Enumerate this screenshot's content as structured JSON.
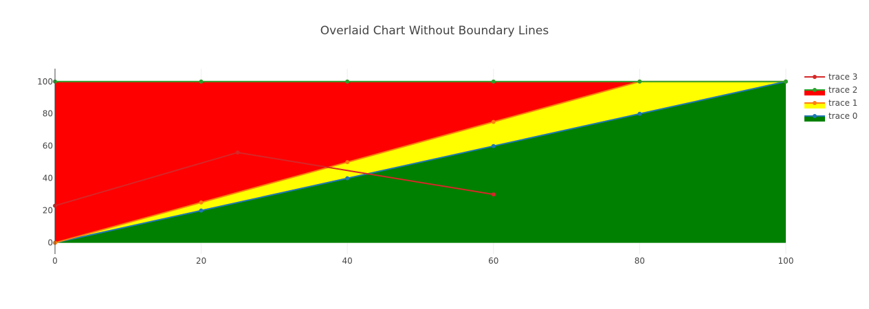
{
  "chart_data": {
    "type": "area",
    "title": "Overlaid Chart Without Boundary Lines",
    "xlabel": "",
    "ylabel": "",
    "xlim": [
      0,
      100
    ],
    "ylim": [
      -7,
      108
    ],
    "x_ticks": [
      0,
      20,
      40,
      60,
      80,
      100
    ],
    "y_ticks": [
      0,
      20,
      40,
      60,
      80,
      100
    ],
    "grid": true,
    "legend_position": "top-right",
    "series": [
      {
        "name": "trace 0",
        "fill": "tozeroy",
        "fill_color": "#008000",
        "line_color": "#1f77b4",
        "x": [
          0,
          20,
          40,
          60,
          80,
          100
        ],
        "y": [
          0,
          20,
          40,
          60,
          80,
          100
        ]
      },
      {
        "name": "trace 1",
        "fill": "tonexty",
        "fill_color": "#ffff00",
        "line_color": "#ff7f0e",
        "x": [
          0,
          20,
          40,
          60,
          80,
          100
        ],
        "y": [
          0,
          25,
          50,
          75,
          100,
          100
        ]
      },
      {
        "name": "trace 2",
        "fill": "tonexty",
        "fill_color": "#ff0000",
        "line_color": "#2ca02c",
        "x": [
          0,
          20,
          40,
          60,
          80,
          100
        ],
        "y": [
          100,
          100,
          100,
          100,
          100,
          100
        ]
      },
      {
        "name": "trace 3",
        "fill": "none",
        "fill_color": "",
        "line_color": "#d62728",
        "x": [
          0,
          25,
          60
        ],
        "y": [
          23,
          56,
          30
        ]
      }
    ]
  }
}
